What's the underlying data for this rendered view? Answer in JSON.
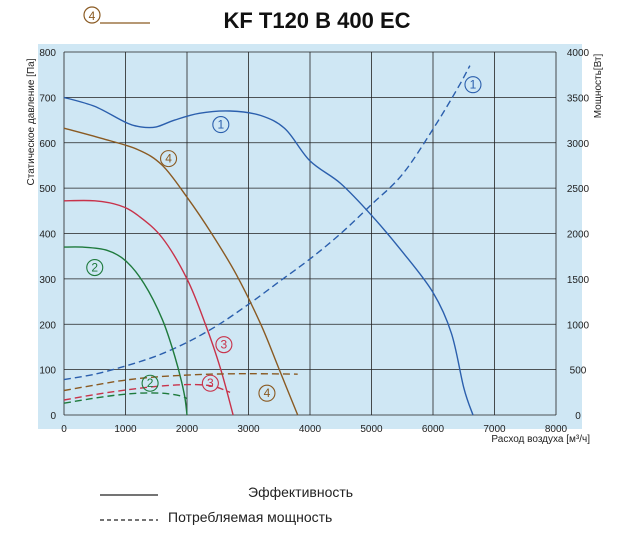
{
  "chart_data": {
    "type": "line",
    "title": "KF T120 B 400 EC",
    "title_marker": "4",
    "xlabel": "Расход воздуха [м³/ч]",
    "ylabel": "Статическое давление [Па]",
    "y2label": "Мощность[Вт]",
    "xlim": [
      0,
      8000
    ],
    "ylim": [
      0,
      800
    ],
    "y2lim": [
      0,
      4000
    ],
    "x_ticks": [
      "0",
      "1000",
      "2000",
      "3000",
      "4000",
      "5000",
      "6000",
      "7000",
      "8000"
    ],
    "y_ticks": [
      "0",
      "100",
      "200",
      "300",
      "400",
      "500",
      "600",
      "700",
      "800"
    ],
    "y2_ticks": [
      "0",
      "500",
      "1000",
      "1500",
      "2000",
      "2500",
      "3000",
      "3500",
      "4000"
    ],
    "grid": true,
    "legend": {
      "solid_label": "Эффективность",
      "dashed_label": "Потребляемая мощность"
    },
    "colors": {
      "plot_bg": "#cfe7f4",
      "curve_1": "#2b5fad",
      "curve_2": "#1e7a3c",
      "curve_3": "#c8324a",
      "curve_4": "#8a5a22"
    },
    "series": [
      {
        "name": "1",
        "style": "solid",
        "axis": "left",
        "color": "#2b5fad",
        "points": [
          [
            0,
            700
          ],
          [
            500,
            680
          ],
          [
            1000,
            645
          ],
          [
            1250,
            635
          ],
          [
            1500,
            635
          ],
          [
            1800,
            650
          ],
          [
            2200,
            665
          ],
          [
            2700,
            670
          ],
          [
            3200,
            660
          ],
          [
            3600,
            630
          ],
          [
            4000,
            560
          ],
          [
            4500,
            510
          ],
          [
            5000,
            440
          ],
          [
            5500,
            360
          ],
          [
            6000,
            270
          ],
          [
            6300,
            180
          ],
          [
            6500,
            60
          ],
          [
            6650,
            0
          ]
        ],
        "label_at": [
          2550,
          640
        ]
      },
      {
        "name": "1",
        "style": "dashed",
        "axis": "right",
        "color": "#2b5fad",
        "points": [
          [
            0,
            390
          ],
          [
            500,
            450
          ],
          [
            1000,
            540
          ],
          [
            1500,
            650
          ],
          [
            2000,
            800
          ],
          [
            2500,
            990
          ],
          [
            3000,
            1220
          ],
          [
            3500,
            1470
          ],
          [
            4000,
            1720
          ],
          [
            4500,
            2000
          ],
          [
            5000,
            2320
          ],
          [
            5500,
            2650
          ],
          [
            6000,
            3150
          ],
          [
            6400,
            3600
          ],
          [
            6600,
            3850
          ]
        ],
        "label_at": [
          6650,
          3640
        ]
      },
      {
        "name": "2",
        "style": "solid",
        "axis": "left",
        "color": "#1e7a3c",
        "points": [
          [
            0,
            370
          ],
          [
            300,
            370
          ],
          [
            700,
            363
          ],
          [
            1000,
            340
          ],
          [
            1300,
            290
          ],
          [
            1600,
            210
          ],
          [
            1800,
            130
          ],
          [
            1950,
            50
          ],
          [
            2000,
            0
          ]
        ],
        "label_at": [
          500,
          325
        ]
      },
      {
        "name": "2",
        "style": "dashed",
        "axis": "right",
        "color": "#1e7a3c",
        "points": [
          [
            0,
            130
          ],
          [
            400,
            175
          ],
          [
            800,
            215
          ],
          [
            1200,
            240
          ],
          [
            1600,
            240
          ],
          [
            1900,
            210
          ],
          [
            2000,
            180
          ]
        ],
        "label_at": [
          1400,
          70
        ]
      },
      {
        "name": "3",
        "style": "solid",
        "axis": "left",
        "color": "#c8324a",
        "points": [
          [
            0,
            472
          ],
          [
            500,
            472
          ],
          [
            900,
            462
          ],
          [
            1200,
            440
          ],
          [
            1600,
            390
          ],
          [
            2000,
            300
          ],
          [
            2300,
            200
          ],
          [
            2550,
            100
          ],
          [
            2750,
            0
          ]
        ],
        "label_at": [
          2600,
          155
        ]
      },
      {
        "name": "3",
        "style": "dashed",
        "axis": "right",
        "color": "#c8324a",
        "points": [
          [
            0,
            165
          ],
          [
            500,
            225
          ],
          [
            1000,
            275
          ],
          [
            1500,
            315
          ],
          [
            2000,
            335
          ],
          [
            2400,
            320
          ],
          [
            2700,
            250
          ]
        ],
        "label_at": [
          2380,
          70
        ]
      },
      {
        "name": "4",
        "style": "solid",
        "axis": "left",
        "color": "#8a5a22",
        "points": [
          [
            0,
            632
          ],
          [
            600,
            610
          ],
          [
            1200,
            585
          ],
          [
            1600,
            550
          ],
          [
            2000,
            480
          ],
          [
            2400,
            400
          ],
          [
            2800,
            310
          ],
          [
            3200,
            200
          ],
          [
            3500,
            100
          ],
          [
            3800,
            0
          ]
        ],
        "label_at": [
          1700,
          565
        ]
      },
      {
        "name": "4",
        "style": "dashed",
        "axis": "right",
        "color": "#8a5a22",
        "points": [
          [
            0,
            270
          ],
          [
            500,
            330
          ],
          [
            1000,
            385
          ],
          [
            1500,
            420
          ],
          [
            2000,
            440
          ],
          [
            2500,
            452
          ],
          [
            3000,
            455
          ],
          [
            3500,
            453
          ],
          [
            3800,
            450
          ]
        ],
        "label_at": [
          3300,
          48
        ]
      }
    ]
  }
}
